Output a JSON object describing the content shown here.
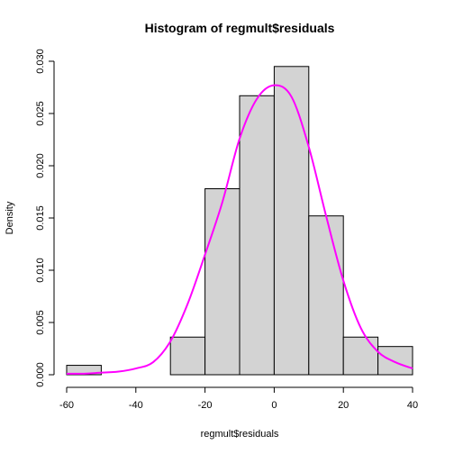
{
  "chart_data": {
    "type": "bar",
    "title": "Histogram of regmult$residuals",
    "xlabel": "regmult$residuals",
    "ylabel": "Density",
    "xlim": [
      -60,
      40
    ],
    "ylim": [
      0,
      0.03
    ],
    "bins": [
      {
        "x0": -60,
        "x1": -50,
        "value": 0.0009
      },
      {
        "x0": -50,
        "x1": -40,
        "value": 0
      },
      {
        "x0": -40,
        "x1": -30,
        "value": 0
      },
      {
        "x0": -30,
        "x1": -20,
        "value": 0.0036
      },
      {
        "x0": -20,
        "x1": -10,
        "value": 0.0178
      },
      {
        "x0": -10,
        "x1": 0,
        "value": 0.0267
      },
      {
        "x0": 0,
        "x1": 10,
        "value": 0.0295
      },
      {
        "x0": 10,
        "x1": 20,
        "value": 0.0152
      },
      {
        "x0": 20,
        "x1": 30,
        "value": 0.0036
      },
      {
        "x0": 30,
        "x1": 40,
        "value": 0.0027
      }
    ],
    "density_curve": {
      "color": "#ff00ff",
      "x": [
        -60,
        -55,
        -50,
        -45,
        -40,
        -35,
        -30,
        -25,
        -20,
        -15,
        -10,
        -5,
        0,
        5,
        10,
        15,
        20,
        25,
        30,
        35,
        40
      ],
      "y": [
        0.0001,
        0.0001,
        0.0002,
        0.0003,
        0.0006,
        0.0012,
        0.0032,
        0.0068,
        0.0115,
        0.0165,
        0.0226,
        0.0264,
        0.0277,
        0.0266,
        0.0218,
        0.0152,
        0.009,
        0.0045,
        0.0022,
        0.0012,
        0.0006
      ]
    },
    "x_ticks": [
      -60,
      -40,
      -20,
      0,
      20,
      40
    ],
    "y_ticks": [
      0.0,
      0.005,
      0.01,
      0.015,
      0.02,
      0.025,
      0.03
    ],
    "y_tick_labels": [
      "0.000",
      "0.005",
      "0.010",
      "0.015",
      "0.020",
      "0.025",
      "0.030"
    ],
    "bar_fill": "#d3d3d3",
    "bar_stroke": "#000000"
  }
}
